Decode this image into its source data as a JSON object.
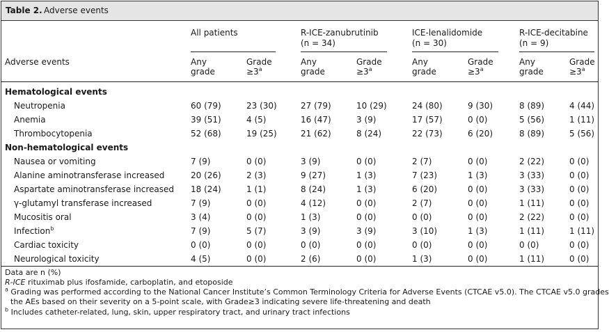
{
  "table": {
    "label": "Table 2.",
    "title": "Adverse events"
  },
  "header": {
    "row_header": "Adverse events",
    "groups": [
      {
        "name": "All patients",
        "n": ""
      },
      {
        "name": "R-ICE-zanubrutinib",
        "n": "(n = 34)"
      },
      {
        "name": "ICE-lenalidomide",
        "n": "(n = 30)"
      },
      {
        "name": "R-ICE-decitabine",
        "n": "(n = 9)"
      }
    ],
    "any_grade_line1": "Any",
    "any_grade_line2": "grade",
    "grade3_line1": "Grade",
    "grade3_line2": "≥3",
    "grade3_sup": "a"
  },
  "sections": [
    {
      "title": "Hematological events",
      "rows": [
        {
          "name": "Neutropenia",
          "sup": "",
          "values": [
            "60 (79)",
            "23 (30)",
            "27 (79)",
            "10 (29)",
            "24 (80)",
            "9 (30)",
            "8 (89)",
            "4 (44)"
          ]
        },
        {
          "name": "Anemia",
          "sup": "",
          "values": [
            "39 (51)",
            "4 (5)",
            "16 (47)",
            "3 (9)",
            "17 (57)",
            "0 (0)",
            "5 (56)",
            "1 (11)"
          ]
        },
        {
          "name": "Thrombocytopenia",
          "sup": "",
          "values": [
            "52 (68)",
            "19 (25)",
            "21 (62)",
            "8 (24)",
            "22 (73)",
            "6 (20)",
            "8 (89)",
            "5 (56)"
          ]
        }
      ]
    },
    {
      "title": "Non-hematological events",
      "rows": [
        {
          "name": "Nausea or vomiting",
          "sup": "",
          "values": [
            "7 (9)",
            "0 (0)",
            "3 (9)",
            "0 (0)",
            "2 (7)",
            "0 (0)",
            "2 (22)",
            "0 (0)"
          ]
        },
        {
          "name": "Alanine aminotransferase increased",
          "sup": "",
          "values": [
            "20 (26)",
            "2 (3)",
            "9 (27)",
            "1 (3)",
            "7 (23)",
            "1 (3)",
            "3 (33)",
            "0 (0)"
          ]
        },
        {
          "name": "Aspartate aminotransferase increased",
          "sup": "",
          "values": [
            "18 (24)",
            "1 (1)",
            "8 (24)",
            "1 (3)",
            "6 (20)",
            "0 (0)",
            "3 (33)",
            "0 (0)"
          ]
        },
        {
          "name": "γ-glutamyl transferase increased",
          "sup": "",
          "values": [
            "7 (9)",
            "0 (0)",
            "4 (12)",
            "0 (0)",
            "2 (7)",
            "0 (0)",
            "1 (11)",
            "0 (0)"
          ]
        },
        {
          "name": "Mucositis oral",
          "sup": "",
          "values": [
            "3 (4)",
            "0 (0)",
            "1 (3)",
            "0 (0)",
            "0 (0)",
            "0 (0)",
            "2 (22)",
            "0 (0)"
          ]
        },
        {
          "name": "Infection",
          "sup": "b",
          "values": [
            "7 (9)",
            "5 (7)",
            "3 (9)",
            "3 (9)",
            "3 (10)",
            "1 (3)",
            "1 (11)",
            "1 (11)"
          ]
        },
        {
          "name": "Cardiac toxicity",
          "sup": "",
          "values": [
            "0 (0)",
            "0 (0)",
            "0 (0)",
            "0 (0)",
            "0 (0)",
            "0 (0)",
            "0 (0)",
            "0 (0)"
          ]
        },
        {
          "name": "Neurological toxicity",
          "sup": "",
          "values": [
            "4 (5)",
            "0 (0)",
            "2 (6)",
            "0 (0)",
            "1 (3)",
            "0 (0)",
            "1 (11)",
            "0 (0)"
          ]
        }
      ]
    }
  ],
  "footnotes": {
    "data_note": "Data are n (%)",
    "abbrev_term": "R-ICE",
    "abbrev_text": " rituximab plus ifosfamide, carboplatin, and etoposide",
    "a_mark": "a",
    "a_line1": " Grading was performed according to the National Cancer Institute’s Common Terminology Criteria for Adverse Events (CTCAE v5.0). The CTCAE v5.0 grades",
    "a_line2": "the AEs based on their severity on a 5-point scale, with Grade≥3 indicating severe life-threatening and death",
    "b_mark": "b",
    "b_text": " Includes catheter-related, lung, skin, upper respiratory tract, and urinary tract infections"
  }
}
